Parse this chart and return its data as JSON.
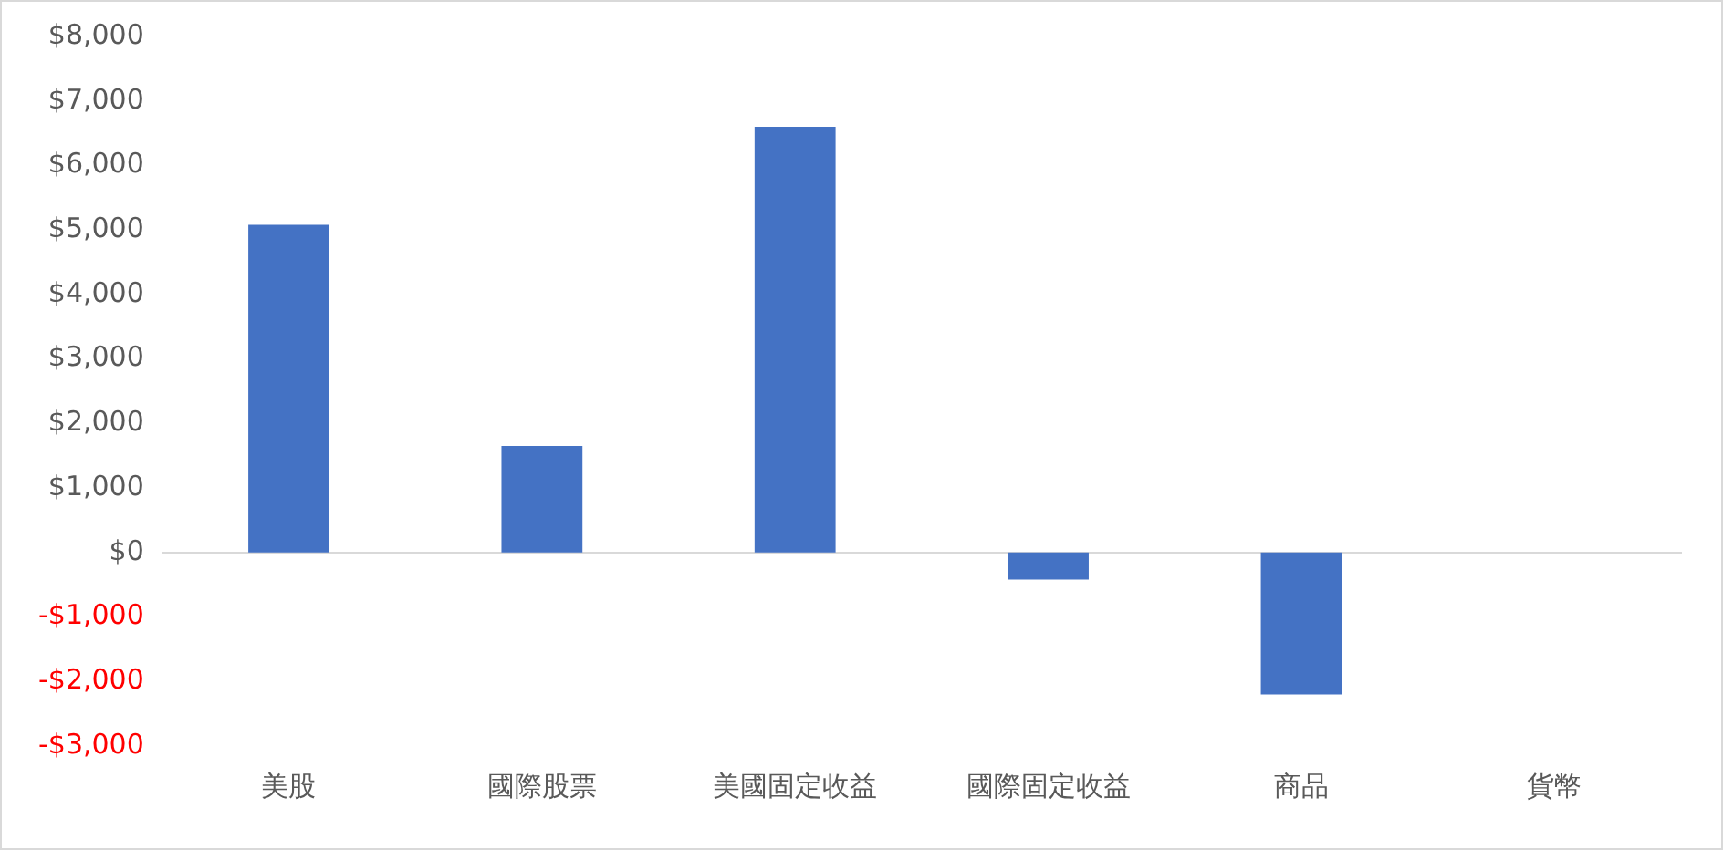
{
  "chart_data": {
    "type": "bar",
    "categories": [
      "美股",
      "國際股票",
      "美國固定收益",
      "國際固定收益",
      "商品",
      "貨幣"
    ],
    "values": [
      5080,
      1650,
      6600,
      -420,
      -2200,
      0
    ],
    "color": "#4472c4",
    "ylim": [
      -3000,
      8000
    ],
    "yticks": [
      {
        "value": -3000,
        "label": "-$3,000"
      },
      {
        "value": -2000,
        "label": "-$2,000"
      },
      {
        "value": -1000,
        "label": "-$1,000"
      },
      {
        "value": 0,
        "label": "$0"
      },
      {
        "value": 1000,
        "label": "$1,000"
      },
      {
        "value": 2000,
        "label": "$2,000"
      },
      {
        "value": 3000,
        "label": "$3,000"
      },
      {
        "value": 4000,
        "label": "$4,000"
      },
      {
        "value": 5000,
        "label": "$5,000"
      },
      {
        "value": 6000,
        "label": "$6,000"
      },
      {
        "value": 7000,
        "label": "$7,000"
      },
      {
        "value": 8000,
        "label": "$8,000"
      }
    ],
    "legend": false
  }
}
